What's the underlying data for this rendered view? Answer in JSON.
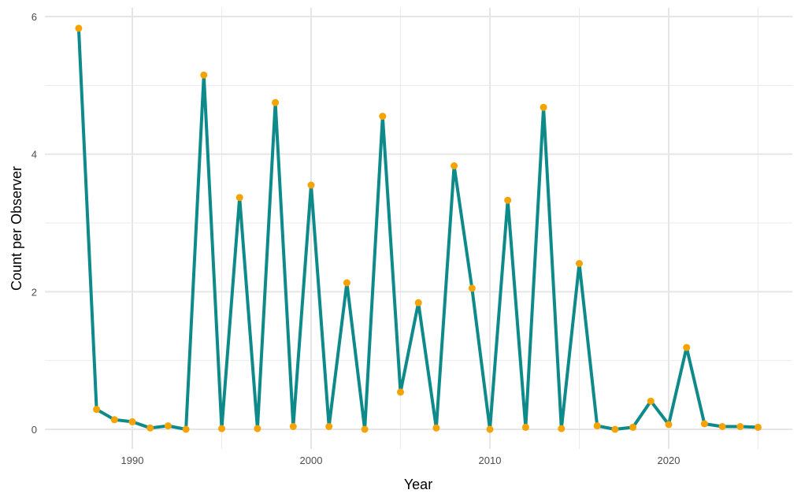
{
  "chart_data": {
    "type": "line",
    "title": "",
    "xlabel": "Year",
    "ylabel": "Count per Observer",
    "xlim": [
      1985.3,
      2026.7
    ],
    "ylim": [
      -0.28,
      6.12
    ],
    "x_ticks": [
      1990,
      2000,
      2010,
      2020
    ],
    "x_tick_labels": [
      "1990",
      "2000",
      "2010",
      "2020"
    ],
    "y_ticks": [
      0,
      2,
      4,
      6
    ],
    "y_tick_labels": [
      "0",
      "2",
      "4",
      "6"
    ],
    "grid": true,
    "legend": null,
    "line_color": "#0e8a8a",
    "point_color": "#f5a300",
    "x": [
      1987,
      1988,
      1989,
      1990,
      1991,
      1992,
      1993,
      1994,
      1995,
      1996,
      1997,
      1998,
      1999,
      2000,
      2001,
      2002,
      2003,
      2004,
      2005,
      2006,
      2007,
      2008,
      2009,
      2010,
      2011,
      2012,
      2013,
      2014,
      2015,
      2016,
      2017,
      2018,
      2019,
      2020,
      2021,
      2022,
      2023,
      2024,
      2025
    ],
    "values": [
      5.83,
      0.29,
      0.14,
      0.11,
      0.02,
      0.05,
      0.0,
      5.15,
      0.01,
      3.37,
      0.01,
      4.75,
      0.04,
      3.55,
      0.04,
      2.13,
      0.0,
      4.55,
      0.54,
      1.84,
      0.02,
      3.83,
      2.05,
      0.0,
      3.33,
      0.03,
      4.68,
      0.01,
      2.41,
      0.05,
      0.0,
      0.03,
      0.41,
      0.07,
      1.19,
      0.08,
      0.04,
      0.04,
      0.03
    ]
  }
}
